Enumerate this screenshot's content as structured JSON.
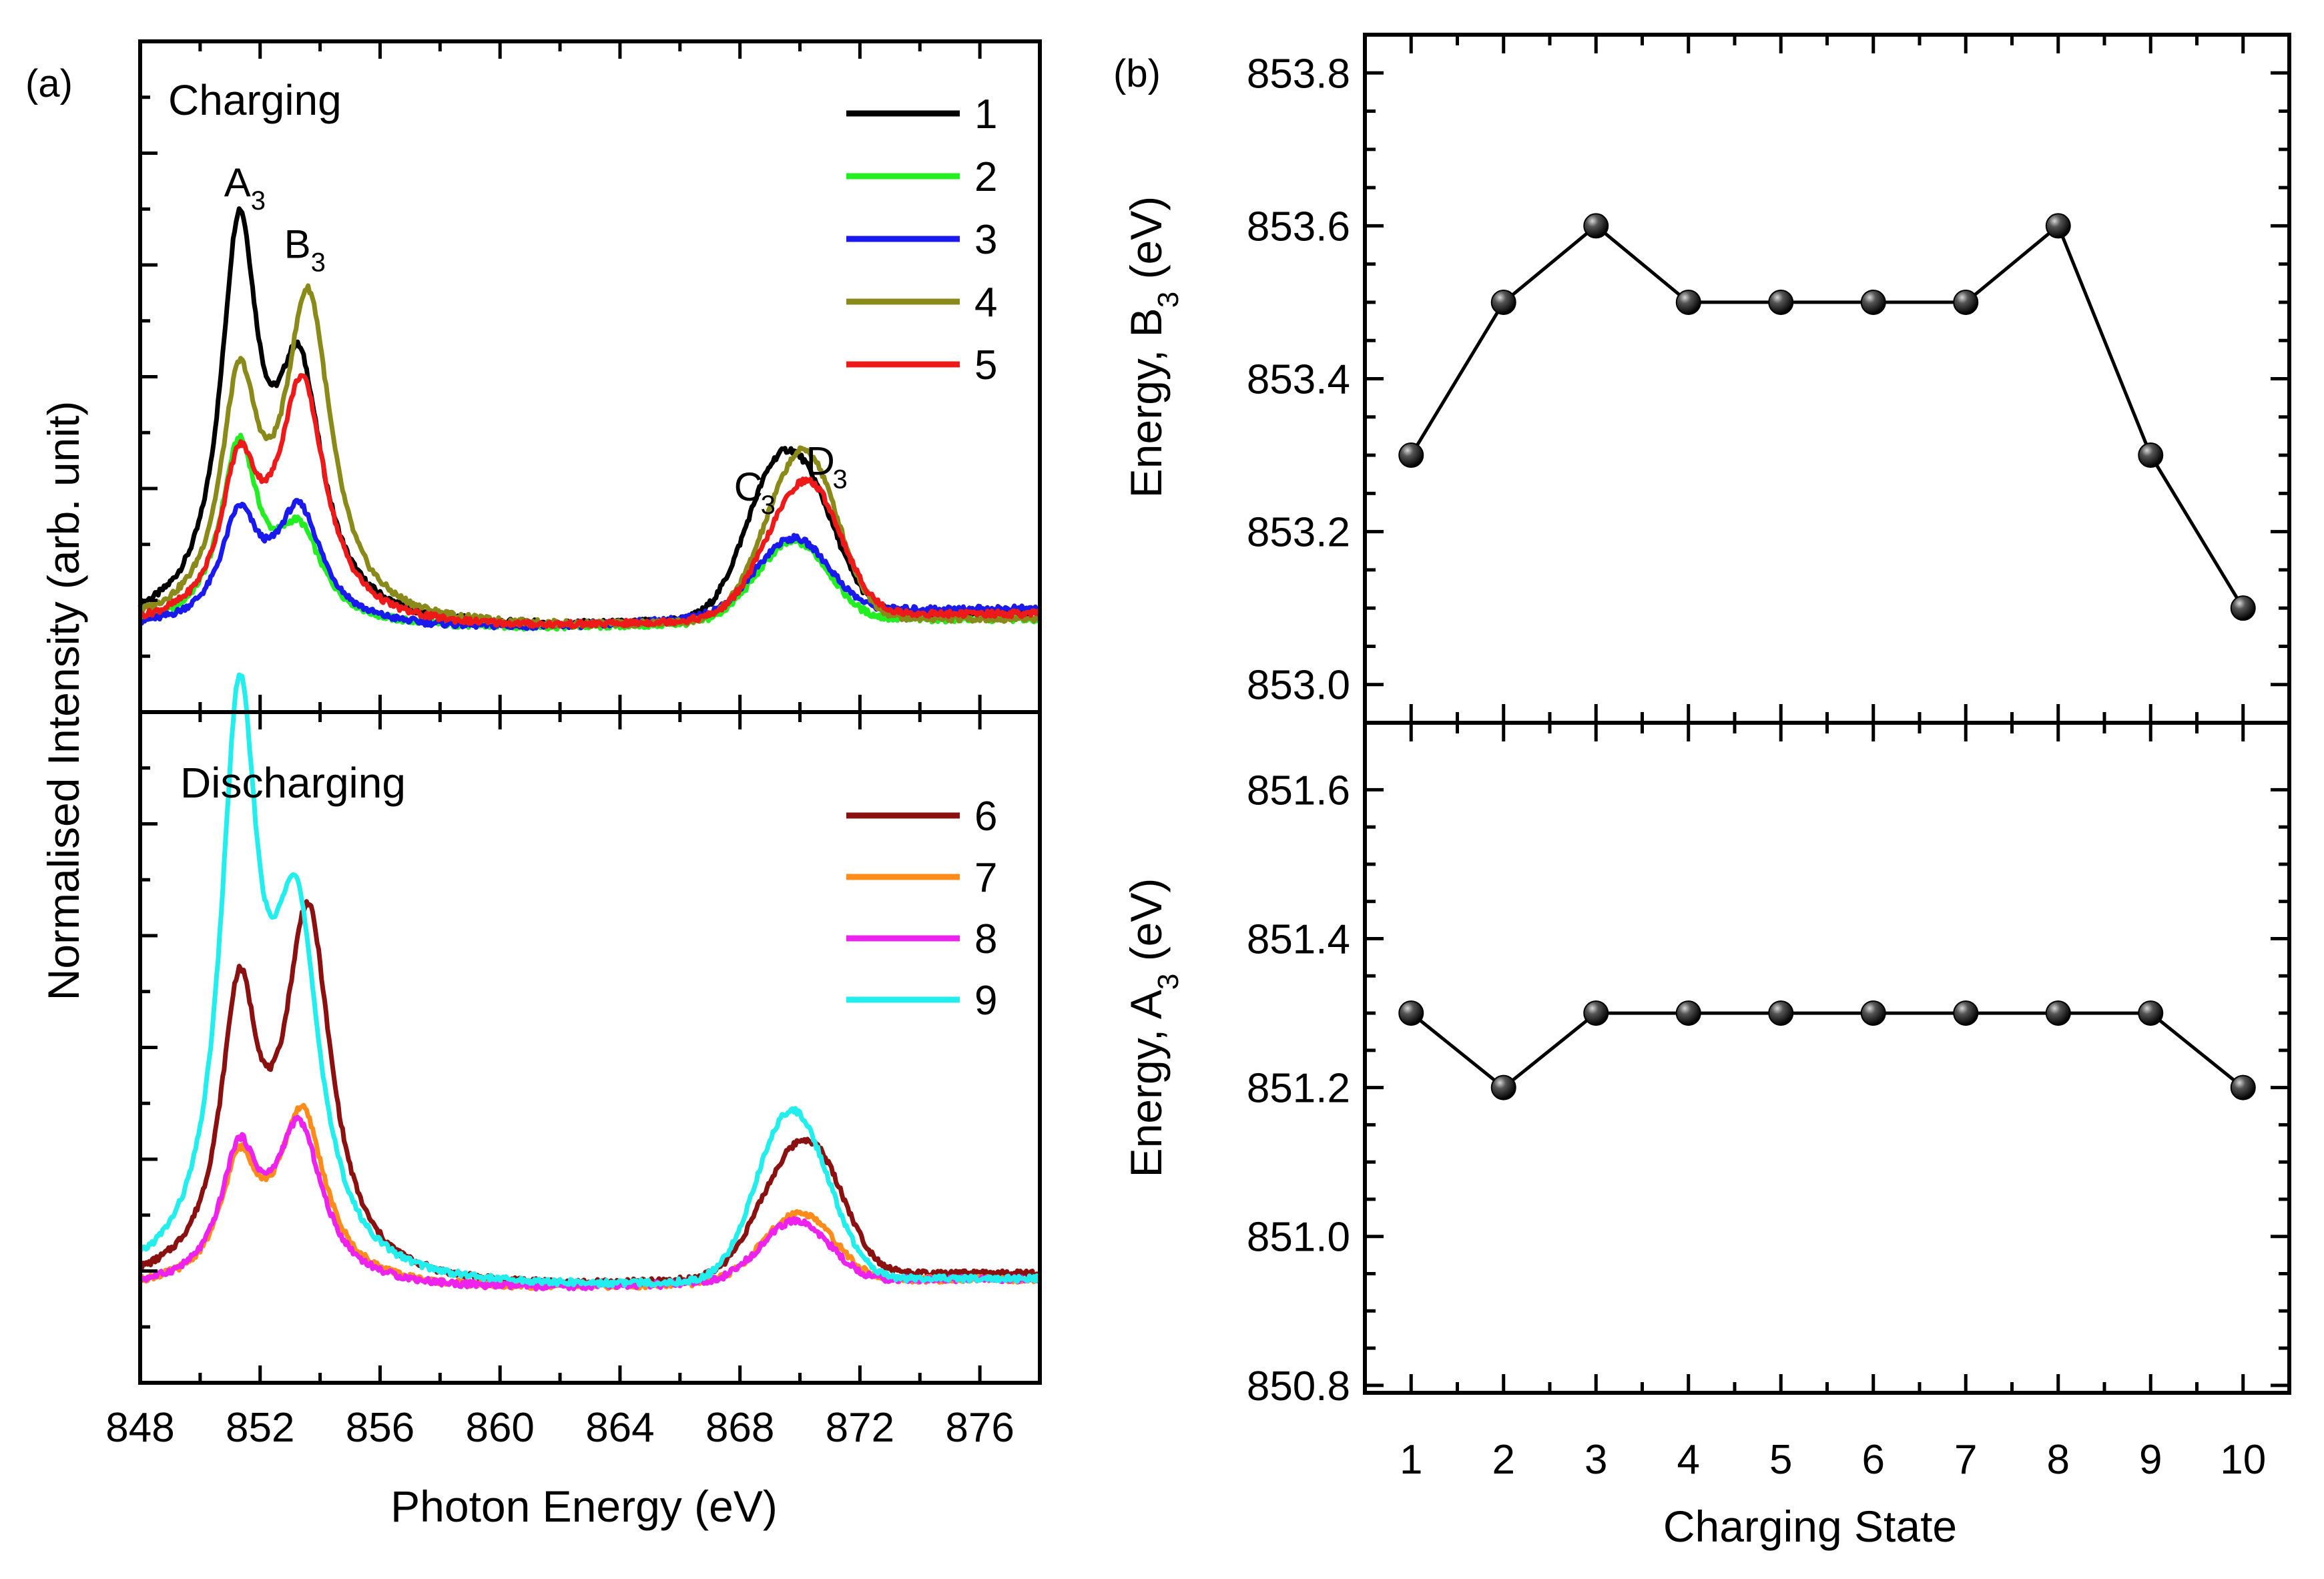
{
  "figure": {
    "panel_a_label": "(a)",
    "panel_b_label": "(b)"
  },
  "colors": {
    "axis": "#000000",
    "s1": "#000000",
    "s2": "#22ee22",
    "s3": "#1a1aee",
    "s4": "#8a8a1a",
    "s5": "#ee1a1a",
    "s6": "#8b1010",
    "s7": "#ff8c1a",
    "s8": "#ee22ee",
    "s9": "#22eeee",
    "marker": "#000000"
  },
  "chart_data": [
    {
      "id": "panel-a-charging",
      "type": "line",
      "title": "Charging",
      "xlabel": "Photon Energy (eV)",
      "ylabel": "Normalised Intensity (arb. unit)",
      "xlim": [
        848,
        878
      ],
      "ylim": [
        0,
        1.3
      ],
      "xticks": [
        "848",
        "852",
        "856",
        "860",
        "864",
        "868",
        "872",
        "876"
      ],
      "legend_position": "top-right",
      "annotations": [
        {
          "text": "A",
          "sub": "3",
          "x": 851.2,
          "y": 1.0
        },
        {
          "text": "B",
          "sub": "3",
          "x": 853.2,
          "y": 0.88
        },
        {
          "text": "C",
          "sub": "3",
          "x": 868.2,
          "y": 0.41
        },
        {
          "text": "D",
          "sub": "3",
          "x": 870.6,
          "y": 0.46
        }
      ],
      "series": [
        {
          "name": "1",
          "color_key": "s1",
          "baseline": 0.16,
          "tail": 0.19,
          "a_h": 0.73,
          "b_h": 0.46,
          "c_h": 0.22,
          "d_h": 0.19,
          "a_pos": 851.3,
          "b_pos": 853.3,
          "c_pos": 869.0,
          "d_pos": 870.4
        },
        {
          "name": "2",
          "color_key": "s2",
          "baseline": 0.16,
          "tail": 0.18,
          "a_h": 0.34,
          "b_h": 0.17,
          "c_h": 0.07,
          "d_h": 0.11,
          "a_pos": 851.3,
          "b_pos": 853.3,
          "c_pos": 869.0,
          "d_pos": 870.2
        },
        {
          "name": "3",
          "color_key": "s3",
          "baseline": 0.16,
          "tail": 0.2,
          "a_h": 0.2,
          "b_h": 0.22,
          "c_h": 0.07,
          "d_h": 0.1,
          "a_pos": 851.3,
          "b_pos": 853.3,
          "c_pos": 869.0,
          "d_pos": 870.2
        },
        {
          "name": "4",
          "color_key": "s4",
          "baseline": 0.16,
          "tail": 0.18,
          "a_h": 0.43,
          "b_h": 0.62,
          "c_h": 0.12,
          "d_h": 0.26,
          "a_pos": 851.3,
          "b_pos": 853.6,
          "c_pos": 869.2,
          "d_pos": 870.4
        },
        {
          "name": "5",
          "color_key": "s5",
          "baseline": 0.16,
          "tail": 0.19,
          "a_h": 0.28,
          "b_h": 0.46,
          "c_h": 0.1,
          "d_h": 0.21,
          "a_pos": 851.3,
          "b_pos": 853.4,
          "c_pos": 869.2,
          "d_pos": 870.5
        }
      ]
    },
    {
      "id": "panel-a-discharging",
      "type": "line",
      "title": "Discharging",
      "xlabel": "Photon Energy (eV)",
      "ylabel": "Normalised Intensity (arb. unit)",
      "xlim": [
        848,
        878
      ],
      "ylim": [
        0,
        1.3
      ],
      "xticks": [
        "848",
        "852",
        "856",
        "860",
        "864",
        "868",
        "872",
        "876"
      ],
      "legend_position": "top-right",
      "series": [
        {
          "name": "6",
          "color_key": "s6",
          "baseline": 0.18,
          "tail": 0.21,
          "a_h": 0.52,
          "b_h": 0.7,
          "c_h": 0.13,
          "d_h": 0.2,
          "a_pos": 851.3,
          "b_pos": 853.6,
          "c_pos": 869.2,
          "d_pos": 870.6
        },
        {
          "name": "7",
          "color_key": "s7",
          "baseline": 0.18,
          "tail": 0.2,
          "a_h": 0.22,
          "b_h": 0.33,
          "c_h": 0.05,
          "d_h": 0.1,
          "a_pos": 851.3,
          "b_pos": 853.4,
          "c_pos": 869.2,
          "d_pos": 870.3
        },
        {
          "name": "8",
          "color_key": "s8",
          "baseline": 0.18,
          "tail": 0.2,
          "a_h": 0.24,
          "b_h": 0.3,
          "c_h": 0.05,
          "d_h": 0.08,
          "a_pos": 851.3,
          "b_pos": 853.3,
          "c_pos": 869.2,
          "d_pos": 870.2
        },
        {
          "name": "9",
          "color_key": "s9",
          "baseline": 0.18,
          "tail": 0.2,
          "a_h": 1.06,
          "b_h": 0.66,
          "c_h": 0.22,
          "d_h": 0.16,
          "a_pos": 851.3,
          "b_pos": 853.2,
          "c_pos": 869.3,
          "d_pos": 870.4
        }
      ]
    },
    {
      "id": "panel-b-top",
      "type": "line",
      "xlabel": "Charging State",
      "ylabel": "Energy, B3 (eV)",
      "ylabel_main": "Energy, B",
      "ylabel_sub": "3",
      "ylabel_tail": " (eV)",
      "ylim": [
        852.95,
        853.85
      ],
      "yticks": [
        "853.0",
        "853.2",
        "853.4",
        "853.6",
        "853.8"
      ],
      "x": [
        1,
        2,
        3,
        4,
        5,
        6,
        7,
        8,
        9,
        10
      ],
      "y": [
        853.3,
        853.5,
        853.6,
        853.5,
        853.5,
        853.5,
        853.5,
        853.6,
        853.3,
        853.1
      ]
    },
    {
      "id": "panel-b-bottom",
      "type": "line",
      "xlabel": "Charging State",
      "ylabel": "Energy, A3 (eV)",
      "ylabel_main": "Energy, A",
      "ylabel_sub": "3",
      "ylabel_tail": " (eV)",
      "xlim": [
        0.5,
        10.5
      ],
      "xticks": [
        "1",
        "2",
        "3",
        "4",
        "5",
        "6",
        "7",
        "8",
        "9",
        "10"
      ],
      "ylim": [
        850.79,
        851.69
      ],
      "yticks": [
        "850.8",
        "851.0",
        "851.2",
        "851.4",
        "851.6"
      ],
      "x": [
        1,
        2,
        3,
        4,
        5,
        6,
        7,
        8,
        9,
        10
      ],
      "y": [
        851.3,
        851.2,
        851.3,
        851.3,
        851.3,
        851.3,
        851.3,
        851.3,
        851.3,
        851.2
      ]
    }
  ]
}
